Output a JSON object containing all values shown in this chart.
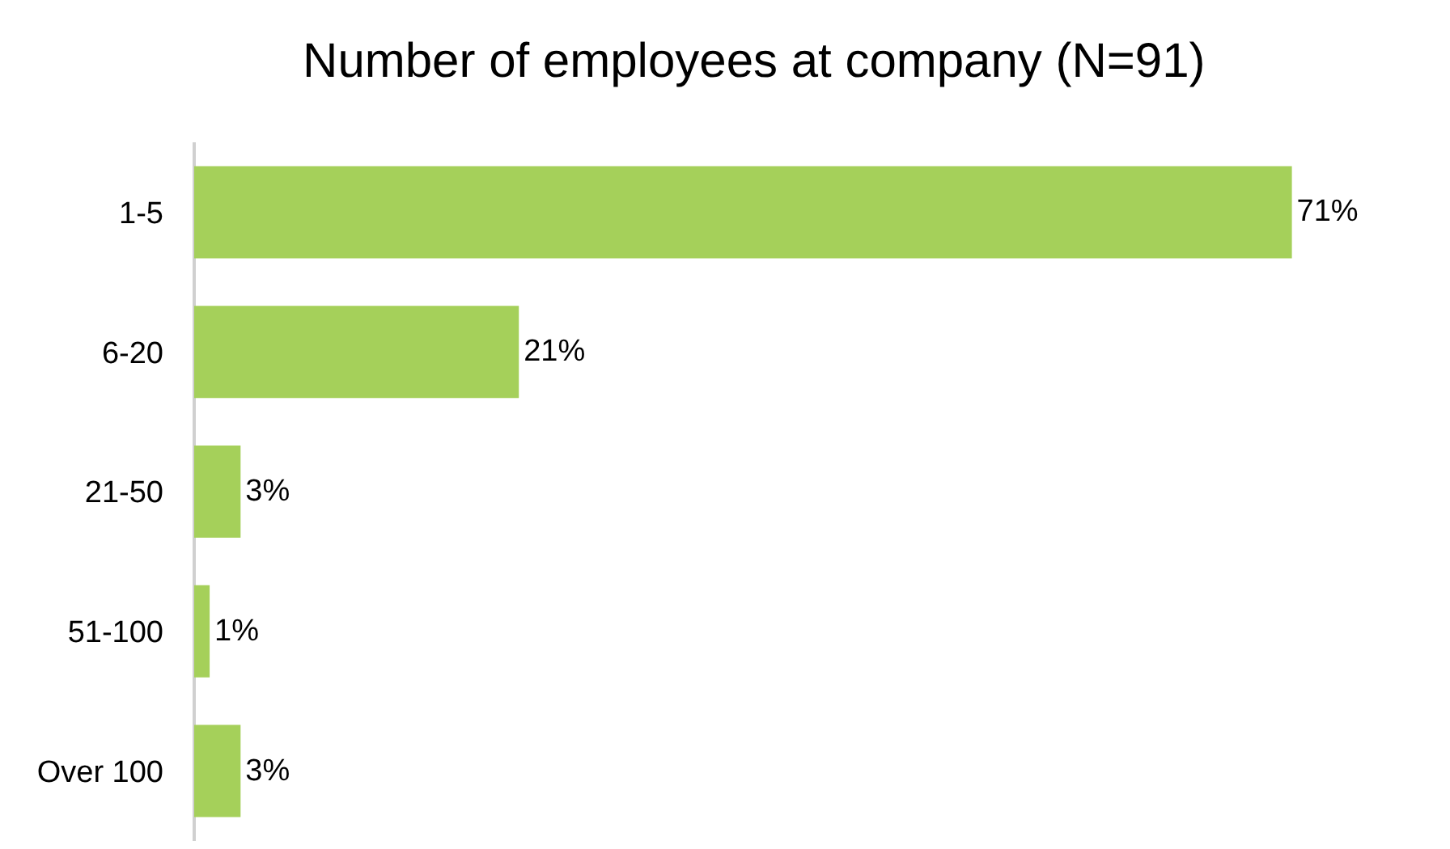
{
  "chart_data": {
    "type": "bar",
    "title": "Number of employees at company (N=91)",
    "orientation": "horizontal",
    "categories": [
      "1-5",
      "6-20",
      "21-50",
      "51-100",
      "Over 100"
    ],
    "values": [
      71,
      21,
      3,
      1,
      3
    ],
    "value_labels": [
      "71%",
      "21%",
      "3%",
      "1%",
      "3%"
    ],
    "color": "#a5d05a",
    "grid": false,
    "legend": false
  }
}
